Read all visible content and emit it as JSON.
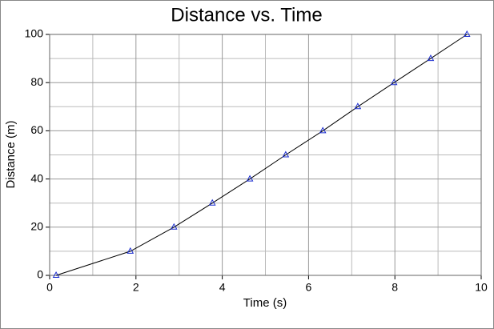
{
  "chart_data": {
    "type": "scatter",
    "title": "Distance vs. Time",
    "x_label": "Time (s)",
    "y_label": "Distance (m)",
    "x_label_color": "#8b1a1a",
    "y_label_color": "#0000cc",
    "xlim": [
      0,
      10
    ],
    "ylim": [
      0,
      100
    ],
    "xticks": [
      0,
      2,
      4,
      6,
      8,
      10
    ],
    "yticks": [
      0,
      20,
      40,
      60,
      80,
      100
    ],
    "grid": true,
    "series": [
      {
        "color": "#1c2fd0",
        "line_color": "#000000",
        "connect": true,
        "x": [
          0.15,
          1.87,
          2.88,
          3.77,
          4.64,
          5.47,
          6.33,
          7.14,
          7.98,
          8.83,
          9.67
        ],
        "values": [
          0,
          10,
          20,
          30,
          40,
          50,
          60,
          70,
          80,
          90,
          100
        ]
      }
    ]
  }
}
